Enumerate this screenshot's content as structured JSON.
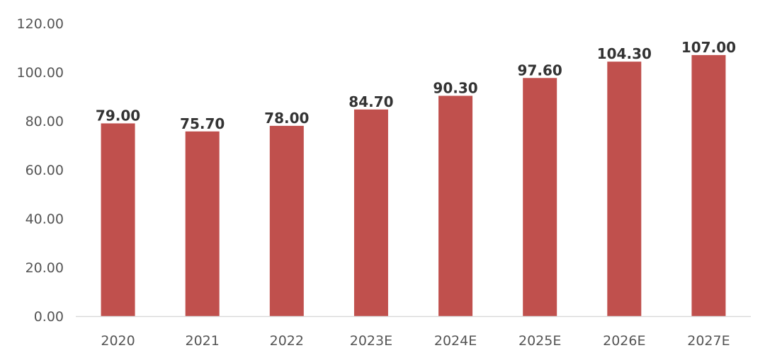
{
  "chart_data": {
    "type": "bar",
    "title": "",
    "xlabel": "",
    "ylabel": "",
    "categories": [
      "2020",
      "2021",
      "2022",
      "2023E",
      "2024E",
      "2025E",
      "2026E",
      "2027E"
    ],
    "values": [
      79.0,
      75.7,
      78.0,
      84.7,
      90.3,
      97.6,
      104.3,
      107.0
    ],
    "data_labels": [
      "79.00",
      "75.70",
      "78.00",
      "84.70",
      "90.30",
      "97.60",
      "104.30",
      "107.00"
    ],
    "ylim": [
      0,
      120
    ],
    "yticks": [
      0,
      20,
      40,
      60,
      80,
      100,
      120
    ],
    "ytick_labels": [
      "0.00",
      "20.00",
      "40.00",
      "60.00",
      "80.00",
      "100.00",
      "120.00"
    ],
    "grid": false,
    "legend": "none",
    "bar_color": "#C0504D",
    "axis_color": "#D9D9D9",
    "text_color": "#595959",
    "label_color": "#333333"
  }
}
